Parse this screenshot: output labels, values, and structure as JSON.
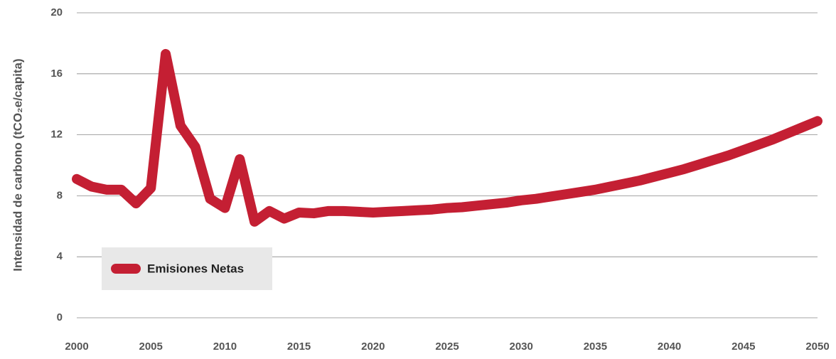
{
  "chart_data": {
    "type": "line",
    "y_label": "Intensidad de carbono  (tCO₂e/capita)",
    "x": [
      2000,
      2001,
      2002,
      2003,
      2004,
      2005,
      2006,
      2007,
      2008,
      2009,
      2010,
      2011,
      2012,
      2013,
      2014,
      2015,
      2016,
      2017,
      2018,
      2019,
      2020,
      2021,
      2022,
      2023,
      2024,
      2025,
      2026,
      2027,
      2028,
      2029,
      2030,
      2031,
      2032,
      2033,
      2034,
      2035,
      2036,
      2037,
      2038,
      2039,
      2040,
      2041,
      2042,
      2043,
      2044,
      2045,
      2046,
      2047,
      2048,
      2049,
      2050
    ],
    "series": [
      {
        "name": "Emisiones Netas",
        "color": "#c41f33",
        "values": [
          9.1,
          8.6,
          8.4,
          8.4,
          7.5,
          8.5,
          17.3,
          12.6,
          11.2,
          7.8,
          7.2,
          10.4,
          6.3,
          7.0,
          6.5,
          6.9,
          6.85,
          7.0,
          7.0,
          6.95,
          6.9,
          6.95,
          7.0,
          7.05,
          7.1,
          7.2,
          7.25,
          7.35,
          7.45,
          7.55,
          7.7,
          7.8,
          7.95,
          8.1,
          8.25,
          8.4,
          8.6,
          8.8,
          9.0,
          9.25,
          9.5,
          9.75,
          10.05,
          10.35,
          10.65,
          11.0,
          11.35,
          11.7,
          12.1,
          12.5,
          12.9
        ]
      }
    ],
    "xlim": [
      2000,
      2050
    ],
    "xticks": [
      2000,
      2005,
      2010,
      2015,
      2020,
      2025,
      2030,
      2035,
      2040,
      2045,
      2050
    ],
    "ylim": [
      0,
      20
    ],
    "yticks": [
      0,
      4,
      8,
      12,
      16,
      20
    ],
    "grid": true,
    "legend": "lower left"
  }
}
